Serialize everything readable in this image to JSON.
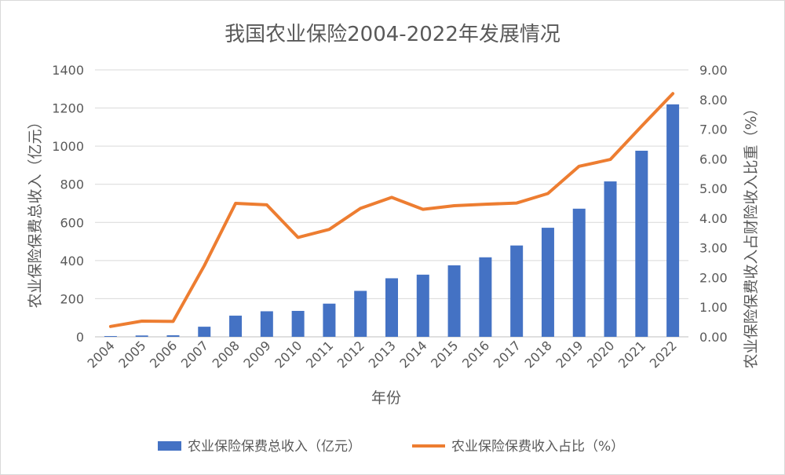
{
  "chart_data": {
    "type": "bar+line",
    "title": "我国农业保险2004-2022年发展情况",
    "xlabel": "年份",
    "ylabel_left": "农业保险保费总收入（亿元）",
    "ylabel_right": "农业保险保费收入占财险收入比重（%）",
    "categories": [
      "2004",
      "2005",
      "2006",
      "2007",
      "2008",
      "2009",
      "2010",
      "2011",
      "2012",
      "2013",
      "2014",
      "2015",
      "2016",
      "2017",
      "2018",
      "2019",
      "2020",
      "2021",
      "2022"
    ],
    "y_left": {
      "min": 0,
      "max": 1400,
      "ticks": [
        "0",
        "200",
        "400",
        "600",
        "800",
        "1000",
        "1200",
        "1400"
      ]
    },
    "y_right": {
      "min": 0,
      "max": 9,
      "ticks": [
        "0.00",
        "1.00",
        "2.00",
        "3.00",
        "4.00",
        "5.00",
        "6.00",
        "7.00",
        "8.00",
        "9.00"
      ]
    },
    "series": [
      {
        "name": "农业保险保费总收入（亿元）",
        "type": "bar",
        "axis": "left",
        "color": "#4472C4",
        "values": [
          4,
          7,
          8,
          53,
          111,
          134,
          136,
          174,
          241,
          307,
          326,
          375,
          417,
          479,
          572,
          672,
          815,
          976,
          1219
        ]
      },
      {
        "name": "农业保险保费收入占比（%）",
        "type": "line",
        "axis": "right",
        "color": "#ED7D31",
        "values": [
          0.35,
          0.53,
          0.52,
          2.4,
          4.5,
          4.45,
          3.35,
          3.62,
          4.33,
          4.7,
          4.3,
          4.42,
          4.47,
          4.51,
          4.83,
          5.75,
          5.98,
          7.1,
          8.2
        ]
      }
    ],
    "legend_position": "bottom",
    "grid": "horizontal"
  }
}
